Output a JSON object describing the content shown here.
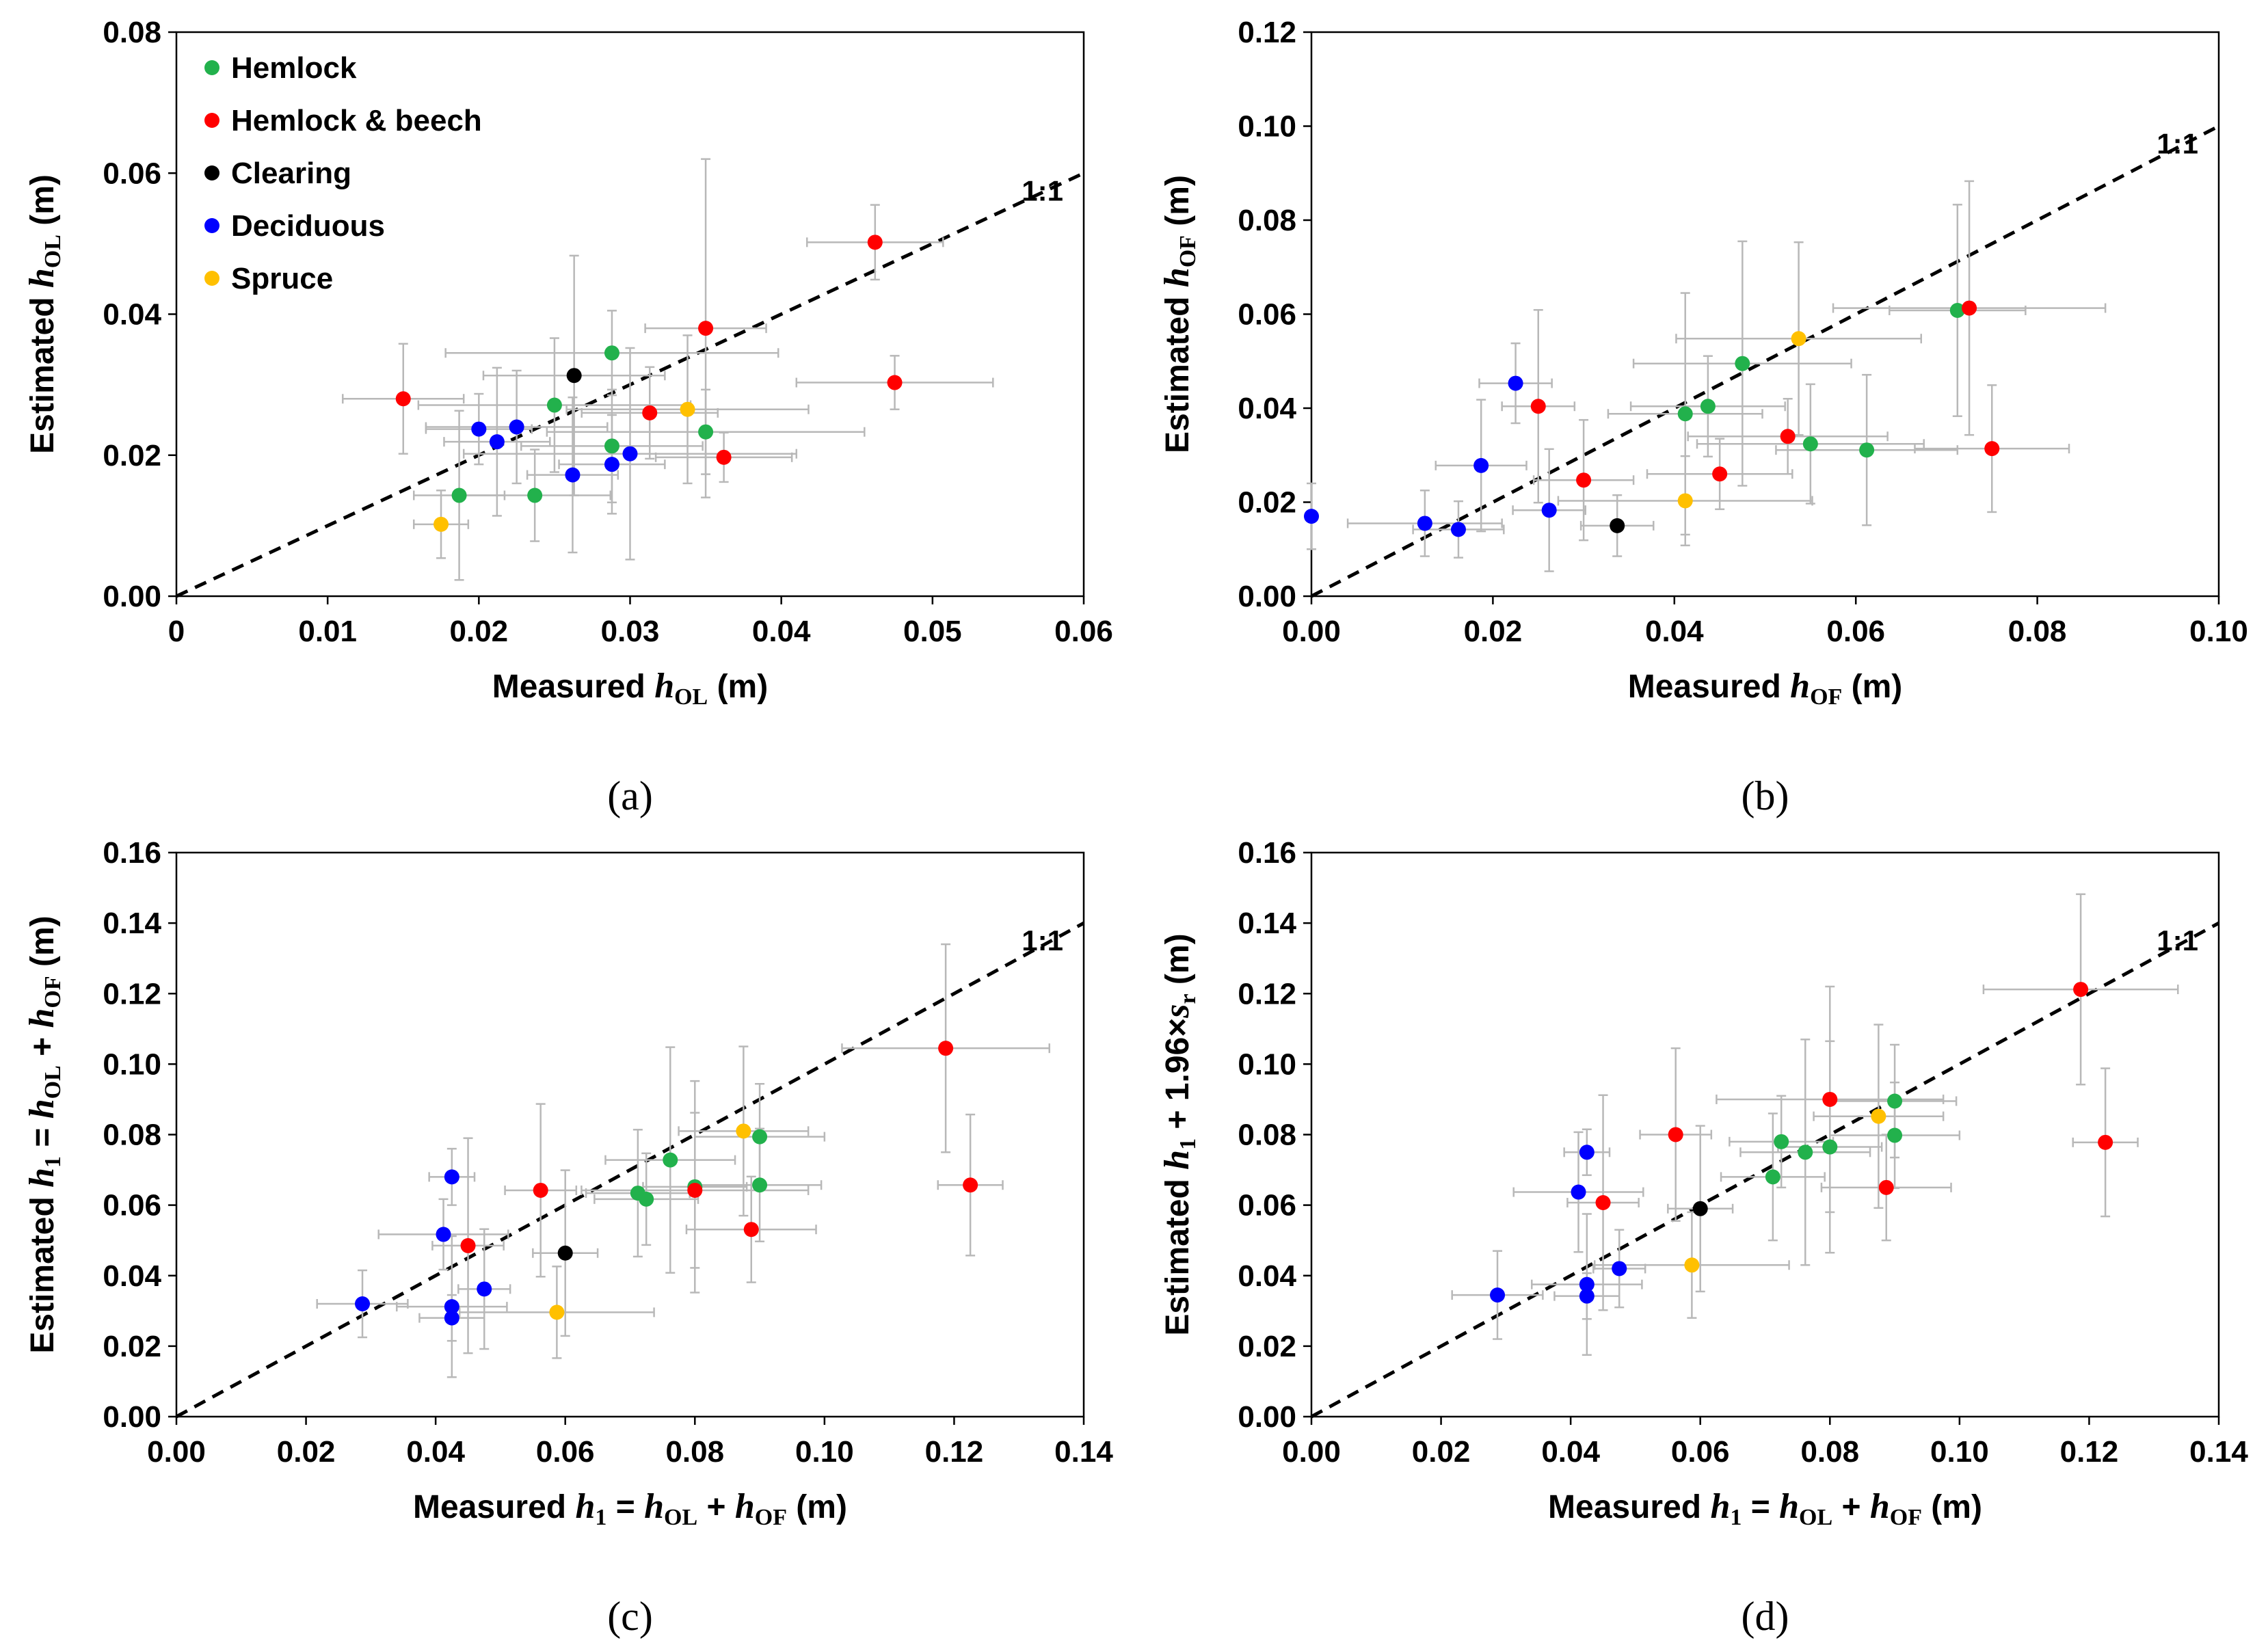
{
  "chart_data": [
    {
      "type": "scatter",
      "id": "a",
      "caption": "(a)",
      "xlabel": "Measured hOL (m)",
      "ylabel": "Estimated hOL (m)",
      "xlim": [
        0,
        0.06
      ],
      "ylim": [
        0,
        0.08
      ],
      "xticks": [
        "0",
        "0.01",
        "0.02",
        "0.03",
        "0.04",
        "0.05",
        "0.06"
      ],
      "yticks": [
        "0.00",
        "0.02",
        "0.04",
        "0.06",
        "0.08"
      ],
      "reference_line": "1:1",
      "legend_placement": "top-left",
      "series": [
        {
          "name": "Hemlock",
          "color": "#22b14c",
          "points": [
            {
              "x": 0.0187,
              "y": 0.0143,
              "xerr": 0.003,
              "yerr": 0.012
            },
            {
              "x": 0.0237,
              "y": 0.0143,
              "xerr": 0.005,
              "yerr": 0.0065
            },
            {
              "x": 0.025,
              "y": 0.0271,
              "xerr": 0.009,
              "yerr": 0.0095
            },
            {
              "x": 0.0288,
              "y": 0.0345,
              "xerr": 0.011,
              "yerr": 0.006
            },
            {
              "x": 0.0288,
              "y": 0.0213,
              "xerr": 0.006,
              "yerr": 0.008
            },
            {
              "x": 0.035,
              "y": 0.0233,
              "xerr": 0.0105,
              "yerr": 0.006
            }
          ]
        },
        {
          "name": "Hemlock & beech",
          "color": "#ff0000",
          "points": [
            {
              "x": 0.015,
              "y": 0.028,
              "xerr": 0.004,
              "yerr": 0.0078
            },
            {
              "x": 0.0313,
              "y": 0.026,
              "xerr": 0.0045,
              "yerr": 0.0065
            },
            {
              "x": 0.035,
              "y": 0.038,
              "xerr": 0.004,
              "yerr": 0.024
            },
            {
              "x": 0.0362,
              "y": 0.0197,
              "xerr": 0.0045,
              "yerr": 0.0035
            },
            {
              "x": 0.0462,
              "y": 0.0502,
              "xerr": 0.0045,
              "yerr": 0.0053
            },
            {
              "x": 0.0475,
              "y": 0.0303,
              "xerr": 0.0065,
              "yerr": 0.0038
            }
          ]
        },
        {
          "name": "Clearing",
          "color": "#000000",
          "points": [
            {
              "x": 0.0263,
              "y": 0.0313,
              "xerr": 0.006,
              "yerr": 0.017
            }
          ]
        },
        {
          "name": "Deciduous",
          "color": "#0000ff",
          "points": [
            {
              "x": 0.02,
              "y": 0.0237,
              "xerr": 0.0035,
              "yerr": 0.005
            },
            {
              "x": 0.0212,
              "y": 0.0219,
              "xerr": 0.0035,
              "yerr": 0.0105
            },
            {
              "x": 0.0225,
              "y": 0.024,
              "xerr": 0.006,
              "yerr": 0.008
            },
            {
              "x": 0.0262,
              "y": 0.0172,
              "xerr": 0.003,
              "yerr": 0.011
            },
            {
              "x": 0.0288,
              "y": 0.0187,
              "xerr": 0.0035,
              "yerr": 0.007
            },
            {
              "x": 0.03,
              "y": 0.0202,
              "xerr": 0.011,
              "yerr": 0.015
            }
          ]
        },
        {
          "name": "Spruce",
          "color": "#ffc000",
          "points": [
            {
              "x": 0.0175,
              "y": 0.0102,
              "xerr": 0.0018,
              "yerr": 0.0048
            },
            {
              "x": 0.0338,
              "y": 0.0265,
              "xerr": 0.008,
              "yerr": 0.0105
            }
          ]
        }
      ]
    },
    {
      "type": "scatter",
      "id": "b",
      "caption": "(b)",
      "xlabel": "Measured hOF (m)",
      "ylabel": "Estimated hOF (m)",
      "xlim": [
        0,
        0.1
      ],
      "ylim": [
        0,
        0.12
      ],
      "xticks": [
        "0.00",
        "0.02",
        "0.04",
        "0.06",
        "0.08",
        "0.10"
      ],
      "yticks": [
        "0.00",
        "0.02",
        "0.04",
        "0.06",
        "0.08",
        "0.10",
        "0.12"
      ],
      "reference_line": "1:1",
      "series": [
        {
          "name": "Hemlock",
          "color": "#22b14c",
          "points": [
            {
              "x": 0.0412,
              "y": 0.0388,
              "xerr": 0.0085,
              "yerr": 0.0257
            },
            {
              "x": 0.0437,
              "y": 0.0404,
              "xerr": 0.0085,
              "yerr": 0.0107
            },
            {
              "x": 0.0475,
              "y": 0.0495,
              "xerr": 0.012,
              "yerr": 0.026
            },
            {
              "x": 0.055,
              "y": 0.0324,
              "xerr": 0.0125,
              "yerr": 0.0127
            },
            {
              "x": 0.0612,
              "y": 0.0311,
              "xerr": 0.01,
              "yerr": 0.016
            },
            {
              "x": 0.0712,
              "y": 0.0608,
              "xerr": 0.0075,
              "yerr": 0.0225
            }
          ]
        },
        {
          "name": "Hemlock & beech",
          "color": "#ff0000",
          "points": [
            {
              "x": 0.025,
              "y": 0.0404,
              "xerr": 0.004,
              "yerr": 0.0205
            },
            {
              "x": 0.03,
              "y": 0.0247,
              "xerr": 0.0055,
              "yerr": 0.0128
            },
            {
              "x": 0.045,
              "y": 0.026,
              "xerr": 0.008,
              "yerr": 0.0075
            },
            {
              "x": 0.0525,
              "y": 0.034,
              "xerr": 0.011,
              "yerr": 0.008
            },
            {
              "x": 0.0725,
              "y": 0.0613,
              "xerr": 0.015,
              "yerr": 0.027
            },
            {
              "x": 0.075,
              "y": 0.0314,
              "xerr": 0.0085,
              "yerr": 0.0135
            }
          ]
        },
        {
          "name": "Clearing",
          "color": "#000000",
          "points": [
            {
              "x": 0.0337,
              "y": 0.015,
              "xerr": 0.004,
              "yerr": 0.0065
            }
          ]
        },
        {
          "name": "Deciduous",
          "color": "#0000ff",
          "points": [
            {
              "x": 0.0,
              "y": 0.017,
              "xerr": 0.0,
              "yerr": 0.007
            },
            {
              "x": 0.0125,
              "y": 0.0155,
              "xerr": 0.0085,
              "yerr": 0.007
            },
            {
              "x": 0.0162,
              "y": 0.0142,
              "xerr": 0.005,
              "yerr": 0.006
            },
            {
              "x": 0.0187,
              "y": 0.0278,
              "xerr": 0.005,
              "yerr": 0.014
            },
            {
              "x": 0.0225,
              "y": 0.0453,
              "xerr": 0.004,
              "yerr": 0.0085
            },
            {
              "x": 0.0262,
              "y": 0.0183,
              "xerr": 0.004,
              "yerr": 0.013
            }
          ]
        },
        {
          "name": "Spruce",
          "color": "#ffc000",
          "points": [
            {
              "x": 0.0412,
              "y": 0.0203,
              "xerr": 0.014,
              "yerr": 0.0095
            },
            {
              "x": 0.0537,
              "y": 0.0548,
              "xerr": 0.0135,
              "yerr": 0.0205
            }
          ]
        }
      ]
    },
    {
      "type": "scatter",
      "id": "c",
      "caption": "(c)",
      "xlabel": "Measured h1 = hOL + hOF (m)",
      "ylabel": "Estimated h1 = hOL + hOF (m)",
      "xlim": [
        0,
        0.14
      ],
      "ylim": [
        0,
        0.16
      ],
      "xticks": [
        "0.00",
        "0.02",
        "0.04",
        "0.06",
        "0.08",
        "0.10",
        "0.12",
        "0.14"
      ],
      "yticks": [
        "0.00",
        "0.02",
        "0.04",
        "0.06",
        "0.08",
        "0.10",
        "0.12",
        "0.14",
        "0.16"
      ],
      "reference_line": "1:1",
      "series": [
        {
          "name": "Hemlock",
          "color": "#22b14c",
          "points": [
            {
              "x": 0.0712,
              "y": 0.0634,
              "xerr": 0.008,
              "yerr": 0.018
            },
            {
              "x": 0.0725,
              "y": 0.0617,
              "xerr": 0.008,
              "yerr": 0.013
            },
            {
              "x": 0.0762,
              "y": 0.0728,
              "xerr": 0.01,
              "yerr": 0.032
            },
            {
              "x": 0.08,
              "y": 0.0652,
              "xerr": 0.008,
              "yerr": 0.03
            },
            {
              "x": 0.09,
              "y": 0.0657,
              "xerr": 0.0095,
              "yerr": 0.016
            },
            {
              "x": 0.09,
              "y": 0.0794,
              "xerr": 0.01,
              "yerr": 0.015
            }
          ]
        },
        {
          "name": "Hemlock & beech",
          "color": "#ff0000",
          "points": [
            {
              "x": 0.045,
              "y": 0.0485,
              "xerr": 0.0055,
              "yerr": 0.0305
            },
            {
              "x": 0.0562,
              "y": 0.0642,
              "xerr": 0.0055,
              "yerr": 0.0245
            },
            {
              "x": 0.08,
              "y": 0.0642,
              "xerr": 0.0175,
              "yerr": 0.022
            },
            {
              "x": 0.0887,
              "y": 0.0531,
              "xerr": 0.01,
              "yerr": 0.015
            },
            {
              "x": 0.1187,
              "y": 0.1045,
              "xerr": 0.016,
              "yerr": 0.0295
            },
            {
              "x": 0.1225,
              "y": 0.0657,
              "xerr": 0.005,
              "yerr": 0.02
            }
          ]
        },
        {
          "name": "Clearing",
          "color": "#000000",
          "points": [
            {
              "x": 0.06,
              "y": 0.0464,
              "xerr": 0.005,
              "yerr": 0.0235
            }
          ]
        },
        {
          "name": "Deciduous",
          "color": "#0000ff",
          "points": [
            {
              "x": 0.0287,
              "y": 0.032,
              "xerr": 0.007,
              "yerr": 0.0095
            },
            {
              "x": 0.0412,
              "y": 0.0517,
              "xerr": 0.01,
              "yerr": 0.01
            },
            {
              "x": 0.0425,
              "y": 0.068,
              "xerr": 0.0035,
              "yerr": 0.008
            },
            {
              "x": 0.0425,
              "y": 0.0312,
              "xerr": 0.0085,
              "yerr": 0.02
            },
            {
              "x": 0.0425,
              "y": 0.028,
              "xerr": 0.005,
              "yerr": 0.0065
            },
            {
              "x": 0.0475,
              "y": 0.0362,
              "xerr": 0.004,
              "yerr": 0.017
            }
          ]
        },
        {
          "name": "Spruce",
          "color": "#ffc000",
          "points": [
            {
              "x": 0.0587,
              "y": 0.0296,
              "xerr": 0.015,
              "yerr": 0.013
            },
            {
              "x": 0.0875,
              "y": 0.081,
              "xerr": 0.01,
              "yerr": 0.024
            }
          ]
        }
      ]
    },
    {
      "type": "scatter",
      "id": "d",
      "caption": "(d)",
      "xlabel": "Measured h1 = hOL + hOF (m)",
      "ylabel": "Estimated h1 + 1.96×sr (m)",
      "xlim": [
        0,
        0.14
      ],
      "ylim": [
        0,
        0.16
      ],
      "xticks": [
        "0.00",
        "0.02",
        "0.04",
        "0.06",
        "0.08",
        "0.10",
        "0.12",
        "0.14"
      ],
      "yticks": [
        "0.00",
        "0.02",
        "0.04",
        "0.06",
        "0.08",
        "0.10",
        "0.12",
        "0.14",
        "0.16"
      ],
      "reference_line": "1:1",
      "series": [
        {
          "name": "Hemlock",
          "color": "#22b14c",
          "points": [
            {
              "x": 0.0712,
              "y": 0.068,
              "xerr": 0.008,
              "yerr": 0.018
            },
            {
              "x": 0.0725,
              "y": 0.078,
              "xerr": 0.008,
              "yerr": 0.013
            },
            {
              "x": 0.0762,
              "y": 0.075,
              "xerr": 0.01,
              "yerr": 0.032
            },
            {
              "x": 0.08,
              "y": 0.0765,
              "xerr": 0.008,
              "yerr": 0.03
            },
            {
              "x": 0.09,
              "y": 0.0895,
              "xerr": 0.0095,
              "yerr": 0.016
            },
            {
              "x": 0.09,
              "y": 0.0798,
              "xerr": 0.01,
              "yerr": 0.015
            }
          ]
        },
        {
          "name": "Hemlock & beech",
          "color": "#ff0000",
          "points": [
            {
              "x": 0.045,
              "y": 0.0607,
              "xerr": 0.0055,
              "yerr": 0.0305
            },
            {
              "x": 0.0562,
              "y": 0.08,
              "xerr": 0.0055,
              "yerr": 0.0245
            },
            {
              "x": 0.08,
              "y": 0.09,
              "xerr": 0.0175,
              "yerr": 0.032
            },
            {
              "x": 0.0887,
              "y": 0.065,
              "xerr": 0.01,
              "yerr": 0.015
            },
            {
              "x": 0.1187,
              "y": 0.1212,
              "xerr": 0.015,
              "yerr": 0.027
            },
            {
              "x": 0.1225,
              "y": 0.0778,
              "xerr": 0.005,
              "yerr": 0.021
            }
          ]
        },
        {
          "name": "Clearing",
          "color": "#000000",
          "points": [
            {
              "x": 0.06,
              "y": 0.059,
              "xerr": 0.005,
              "yerr": 0.0235
            }
          ]
        },
        {
          "name": "Deciduous",
          "color": "#0000ff",
          "points": [
            {
              "x": 0.0287,
              "y": 0.0345,
              "xerr": 0.007,
              "yerr": 0.0125
            },
            {
              "x": 0.0412,
              "y": 0.0637,
              "xerr": 0.01,
              "yerr": 0.017
            },
            {
              "x": 0.0425,
              "y": 0.075,
              "xerr": 0.0035,
              "yerr": 0.0065
            },
            {
              "x": 0.0425,
              "y": 0.0375,
              "xerr": 0.0085,
              "yerr": 0.02
            },
            {
              "x": 0.0425,
              "y": 0.0342,
              "xerr": 0.005,
              "yerr": 0.0065
            },
            {
              "x": 0.0475,
              "y": 0.042,
              "xerr": 0.004,
              "yerr": 0.011
            }
          ]
        },
        {
          "name": "Spruce",
          "color": "#ffc000",
          "points": [
            {
              "x": 0.0587,
              "y": 0.043,
              "xerr": 0.015,
              "yerr": 0.015
            },
            {
              "x": 0.0875,
              "y": 0.0852,
              "xerr": 0.01,
              "yerr": 0.026
            }
          ]
        }
      ]
    }
  ]
}
